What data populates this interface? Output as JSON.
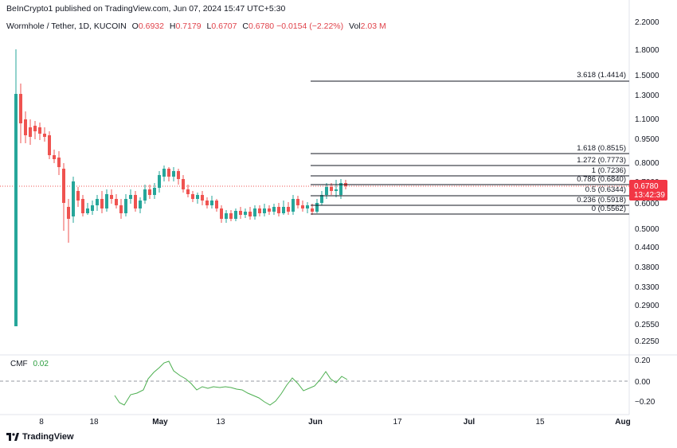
{
  "header": {
    "publish": "BeInCrypto1 published on TradingView.com, Jun 07, 2024 15:47 UTC+5:30",
    "symbol": "Wormhole / Tether, 1D, KUCOIN",
    "open_k": "O",
    "open": "0.6932",
    "high_k": "H",
    "high": "0.7179",
    "low_k": "L",
    "low": "0.6707",
    "close_k": "C",
    "close": "0.6780",
    "change": "−0.0154 (−2.22%)",
    "vol_k": "Vol",
    "vol": "2.03 M"
  },
  "price_axis": {
    "labels": [
      "2.2000",
      "1.8000",
      "1.5000",
      "1.3000",
      "1.1000",
      "0.9500",
      "0.8000",
      "0.7000",
      "0.6000",
      "0.5000",
      "0.4400",
      "0.3800",
      "0.3300",
      "0.2900",
      "0.2550",
      "0.2250"
    ],
    "current_price": "0.6780",
    "countdown": "13:42:39"
  },
  "fib_levels": [
    {
      "label": "3.618 (1.4414)"
    },
    {
      "label": "1.618 (0.8515)"
    },
    {
      "label": "1.272 (0.7773)"
    },
    {
      "label": "1 (0.7236)"
    },
    {
      "label": "0.786 (0.6840)"
    },
    {
      "label": "0.5 (0.6344)"
    },
    {
      "label": "0.236 (0.5918)"
    },
    {
      "label": "0 (0.5562)"
    }
  ],
  "cmf": {
    "title": "CMF",
    "value": "0.02",
    "axis_labels": [
      "0.20",
      "0.00",
      "−0.20"
    ]
  },
  "time_axis": {
    "labels": [
      "8",
      "18",
      "May",
      "13",
      "Jun",
      "17",
      "Jul",
      "15",
      "Aug"
    ]
  },
  "footer": {
    "brand": "TradingView"
  },
  "colors": {
    "up": "#26a69a",
    "down": "#ef5350",
    "cmf_line": "#4caf50",
    "price_label_bg": "#f23645"
  }
}
